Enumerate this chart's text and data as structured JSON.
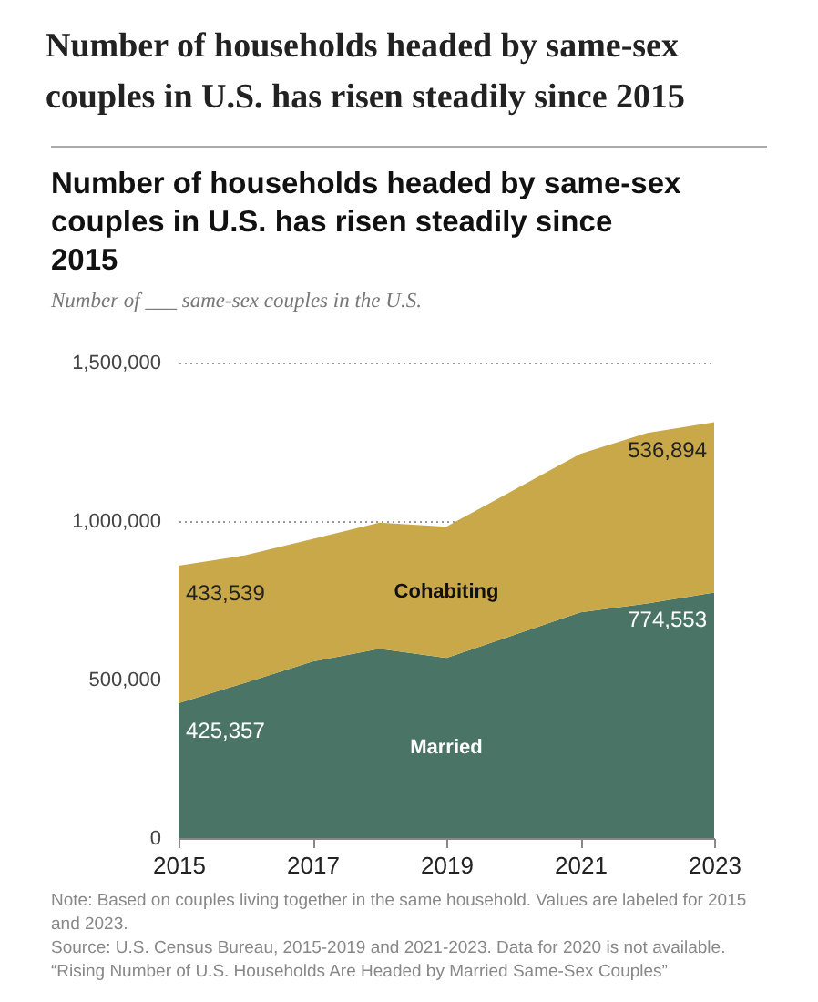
{
  "chart_data": {
    "type": "area",
    "stacked": true,
    "title": "Number of households headed by same-sex couples in U.S. has risen steadily since 2015",
    "subtitle": "Number of ___ same-sex couples in the U.S.",
    "x": [
      2015,
      2016,
      2017,
      2018,
      2019,
      2021,
      2022,
      2023
    ],
    "series": [
      {
        "name": "Married",
        "color": "#4a7566",
        "values": [
          425357,
          490000,
          557000,
          597000,
          568000,
          712000,
          740000,
          774553
        ],
        "value_labels": [
          "425,357",
          null,
          null,
          null,
          null,
          null,
          null,
          "774,553"
        ]
      },
      {
        "name": "Cohabiting",
        "color": "#c9a84a",
        "values": [
          433539,
          402000,
          386000,
          398000,
          414000,
          500000,
          538000,
          536894
        ],
        "value_labels": [
          "433,539",
          null,
          null,
          null,
          null,
          null,
          null,
          "536,894"
        ]
      }
    ],
    "xlim": [
      2015,
      2023
    ],
    "xticks": [
      2015,
      2017,
      2019,
      2021,
      2023
    ],
    "ylim": [
      0,
      1500000
    ],
    "yticks": [
      0,
      {
        "value": 500000,
        "label": "500,000"
      },
      {
        "value": 1000000,
        "label": "1,000,000"
      },
      {
        "value": 1500000,
        "label": "1,500,000"
      }
    ],
    "grid": "y",
    "legend": false,
    "annotations": [
      "Number of households headed by same-sex couples in U.S. has risen steadily since 2015",
      "Note: Based on couples living together in the same household. Values are labeled for 2015 and 2023.",
      "Source: U.S. Census Bureau, 2015-2019 and 2021-2023. Data for 2020 is not available.",
      "“Rising Number of U.S. Households Are Headed by Married Same-Sex Couples”"
    ]
  }
}
